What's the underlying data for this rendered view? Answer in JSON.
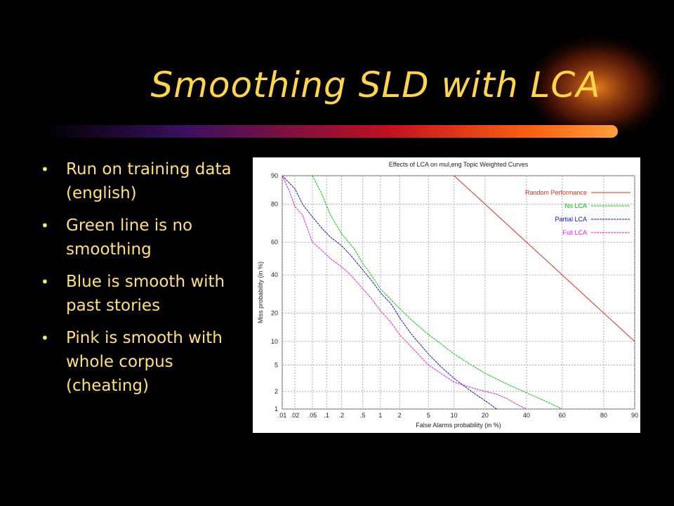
{
  "slide": {
    "title": "Smoothing SLD with LCA",
    "bullet_marker": "•",
    "bullets": [
      "Run on training data (english)",
      "Green line is no smoothing",
      "Blue is smooth with past stories",
      "Pink is smooth with whole corpus (cheating)"
    ],
    "colors": {
      "background": "#000000",
      "title": "#ffd54a",
      "text": "#ffe07a"
    }
  },
  "chart_data": {
    "type": "line",
    "title": "Effects of LCA on mul,eng Topic Weighted Curves",
    "xlabel": "False Alarms probability (in %)",
    "ylabel": "Miss probability (in %)",
    "x_ticks": [
      ".01",
      ".02",
      ".05",
      ".1",
      ".2",
      ".5",
      "1",
      "2",
      "5",
      "10",
      "20",
      "40",
      "60",
      "80",
      "90"
    ],
    "y_ticks": [
      "1",
      "2",
      "5",
      "10",
      "20",
      "40",
      "60",
      "80",
      "90"
    ],
    "x_tick_values": [
      0.01,
      0.02,
      0.05,
      0.1,
      0.2,
      0.5,
      1,
      2,
      5,
      10,
      20,
      40,
      60,
      80,
      90
    ],
    "y_tick_values": [
      1,
      2,
      5,
      10,
      20,
      40,
      60,
      80,
      90
    ],
    "scale": "normal-deviate",
    "xlim": [
      0.01,
      90
    ],
    "ylim": [
      1,
      90
    ],
    "grid": true,
    "legend_position": "top-right",
    "series": [
      {
        "name": "Random Performance",
        "color": "#e03020",
        "x": [
          10,
          20,
          40,
          60,
          80,
          90
        ],
        "y": [
          90,
          80,
          60,
          40,
          20,
          10
        ]
      },
      {
        "name": "No LCA",
        "color": "#00c800",
        "x": [
          0.05,
          0.08,
          0.12,
          0.2,
          0.35,
          0.5,
          0.7,
          1,
          1.5,
          2,
          3,
          5,
          7,
          10,
          15,
          20,
          30,
          40,
          50,
          60
        ],
        "y": [
          90,
          84,
          75,
          65,
          56,
          47,
          40,
          32,
          26,
          22,
          17,
          12,
          9.5,
          7,
          5,
          3.8,
          2.6,
          1.9,
          1.4,
          1
        ]
      },
      {
        "name": "Partial LCA",
        "color": "#1010c0",
        "x": [
          0.01,
          0.02,
          0.03,
          0.05,
          0.08,
          0.12,
          0.2,
          0.3,
          0.5,
          0.7,
          1,
          1.5,
          2,
          3,
          5,
          7,
          10,
          15,
          20,
          25
        ],
        "y": [
          90,
          86,
          80,
          74,
          68,
          63,
          58,
          52,
          43,
          37,
          30,
          24,
          18,
          12,
          7,
          4.8,
          3.2,
          2,
          1.4,
          1
        ]
      },
      {
        "name": "Full LCA",
        "color": "#e020e0",
        "x": [
          0.01,
          0.015,
          0.02,
          0.03,
          0.05,
          0.08,
          0.12,
          0.2,
          0.3,
          0.5,
          0.7,
          1,
          1.5,
          2,
          3,
          5,
          10,
          15,
          20,
          25,
          30,
          35,
          40
        ],
        "y": [
          90,
          85,
          79,
          75,
          60,
          55,
          50,
          45,
          40,
          32,
          27,
          21,
          16,
          12,
          8.5,
          5,
          2.8,
          2.3,
          2,
          1.8,
          1.5,
          1.2,
          1
        ]
      }
    ]
  }
}
